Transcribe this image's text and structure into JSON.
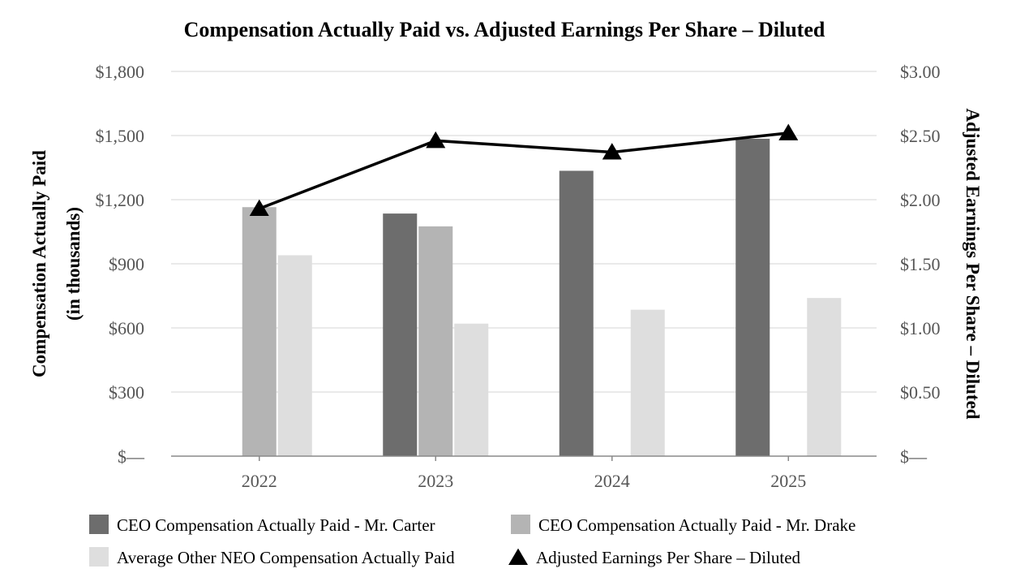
{
  "chart_data": {
    "type": "bar",
    "title": "Compensation Actually Paid vs. Adjusted Earnings Per Share – Diluted",
    "categories": [
      "2022",
      "2023",
      "2024",
      "2025"
    ],
    "ylabel_left": [
      "Compensation Actually Paid",
      "(in thousands)"
    ],
    "ylabel_right": "Adjusted Earnings Per Share – Diluted",
    "ylim_left": [
      0,
      1800
    ],
    "ylim_right": [
      0,
      3.0
    ],
    "left_ticks": [
      {
        "value": 0,
        "label": "$—"
      },
      {
        "value": 300,
        "label": "$300"
      },
      {
        "value": 600,
        "label": "$600"
      },
      {
        "value": 900,
        "label": "$900"
      },
      {
        "value": 1200,
        "label": "$1,200"
      },
      {
        "value": 1500,
        "label": "$1,500"
      },
      {
        "value": 1800,
        "label": "$1,800"
      }
    ],
    "right_ticks": [
      {
        "value": 0,
        "label": "$—"
      },
      {
        "value": 0.5,
        "label": "$0.50"
      },
      {
        "value": 1.0,
        "label": "$1.00"
      },
      {
        "value": 1.5,
        "label": "$1.50"
      },
      {
        "value": 2.0,
        "label": "$2.00"
      },
      {
        "value": 2.5,
        "label": "$2.50"
      },
      {
        "value": 3.0,
        "label": "$3.00"
      }
    ],
    "grid": true,
    "series": [
      {
        "name": "CEO Compensation Actually Paid - Mr. Carter",
        "color": "#6d6d6d",
        "values": [
          null,
          1135,
          1335,
          1485
        ]
      },
      {
        "name": "CEO Compensation Actually Paid - Mr. Drake",
        "color": "#b4b4b4",
        "values": [
          1165,
          1075,
          null,
          null
        ]
      },
      {
        "name": "Average Other NEO Compensation Actually Paid",
        "color": "#dedede",
        "values": [
          940,
          620,
          685,
          740
        ]
      }
    ],
    "line_series": {
      "name": "Adjusted Earnings Per Share – Diluted",
      "color": "#000000",
      "marker": "triangle",
      "axis": "right",
      "values": [
        1.93,
        2.46,
        2.37,
        2.52
      ]
    },
    "legend_position": "bottom"
  }
}
